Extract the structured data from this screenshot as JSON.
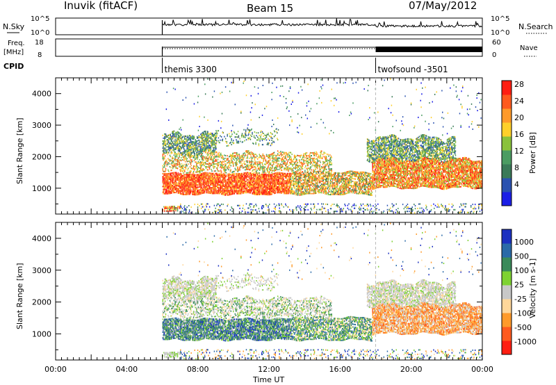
{
  "header": {
    "station": "Inuvik (fitACF)",
    "beam": "Beam 15",
    "date": "07/May/2012"
  },
  "nsky_panel": {
    "left_label": "N.Sky",
    "right_label": "N.Search",
    "left_ticks": [
      "10^5",
      "10^0"
    ],
    "right_ticks": [
      "10^5",
      "10^0"
    ]
  },
  "freq_panel": {
    "left_label_1": "Freq.",
    "left_label_2": "[MHz]",
    "right_label": "Nave",
    "left_ticks": [
      "18",
      "8"
    ],
    "right_ticks": [
      "60",
      "0"
    ]
  },
  "cpid": {
    "label": "CPID",
    "modes": [
      {
        "name": "themis 3300",
        "start_hour": 6.0
      },
      {
        "name": "twofsound -3501",
        "start_hour": 18.0
      }
    ]
  },
  "colors": {
    "power_scale": [
      "#1b1ee6",
      "#2a52b0",
      "#3a7a58",
      "#4b9c62",
      "#8ac23c",
      "#ffd02a",
      "#ff9a2a",
      "#ff5a1e",
      "#ff1e12"
    ],
    "velocity_scale": [
      "#ff1e12",
      "#ff5a1e",
      "#ff9a2a",
      "#ffd79a",
      "#c8c8c8",
      "#7ed232",
      "#3a8a5a",
      "#2a6aa8",
      "#1b30c0"
    ]
  },
  "chart_data": [
    {
      "type": "heatmap",
      "panel": "power",
      "xlabel": "Time UT",
      "ylabel": "Slant Range [km]",
      "x_ticks": [
        "00:00",
        "04:00",
        "08:00",
        "12:00",
        "16:00",
        "20:00",
        "00:00"
      ],
      "x_hours": [
        0,
        4,
        8,
        12,
        16,
        20,
        24
      ],
      "xlim": [
        0,
        24
      ],
      "ylim": [
        180,
        4500
      ],
      "y_ticks": [
        1000,
        2000,
        3000,
        4000
      ],
      "colorbar_label": "Power [dB]",
      "colorbar_ticks": [
        "4",
        "8",
        "12",
        "16",
        "20",
        "24",
        "28"
      ],
      "colorbar_range": [
        0,
        30
      ]
    },
    {
      "type": "heatmap",
      "panel": "velocity",
      "xlabel": "Time UT",
      "ylabel": "Slant Range [km]",
      "x_ticks": [
        "00:00",
        "04:00",
        "08:00",
        "12:00",
        "16:00",
        "20:00",
        "00:00"
      ],
      "x_hours": [
        0,
        4,
        8,
        12,
        16,
        20,
        24
      ],
      "xlim": [
        0,
        24
      ],
      "ylim": [
        180,
        4500
      ],
      "y_ticks": [
        1000,
        2000,
        3000,
        4000
      ],
      "colorbar_label": "Velocity [m s-1]",
      "colorbar_ticks": [
        "1000",
        "500",
        "100",
        "25",
        "-25",
        "-100",
        "-500",
        "-1000"
      ]
    }
  ]
}
